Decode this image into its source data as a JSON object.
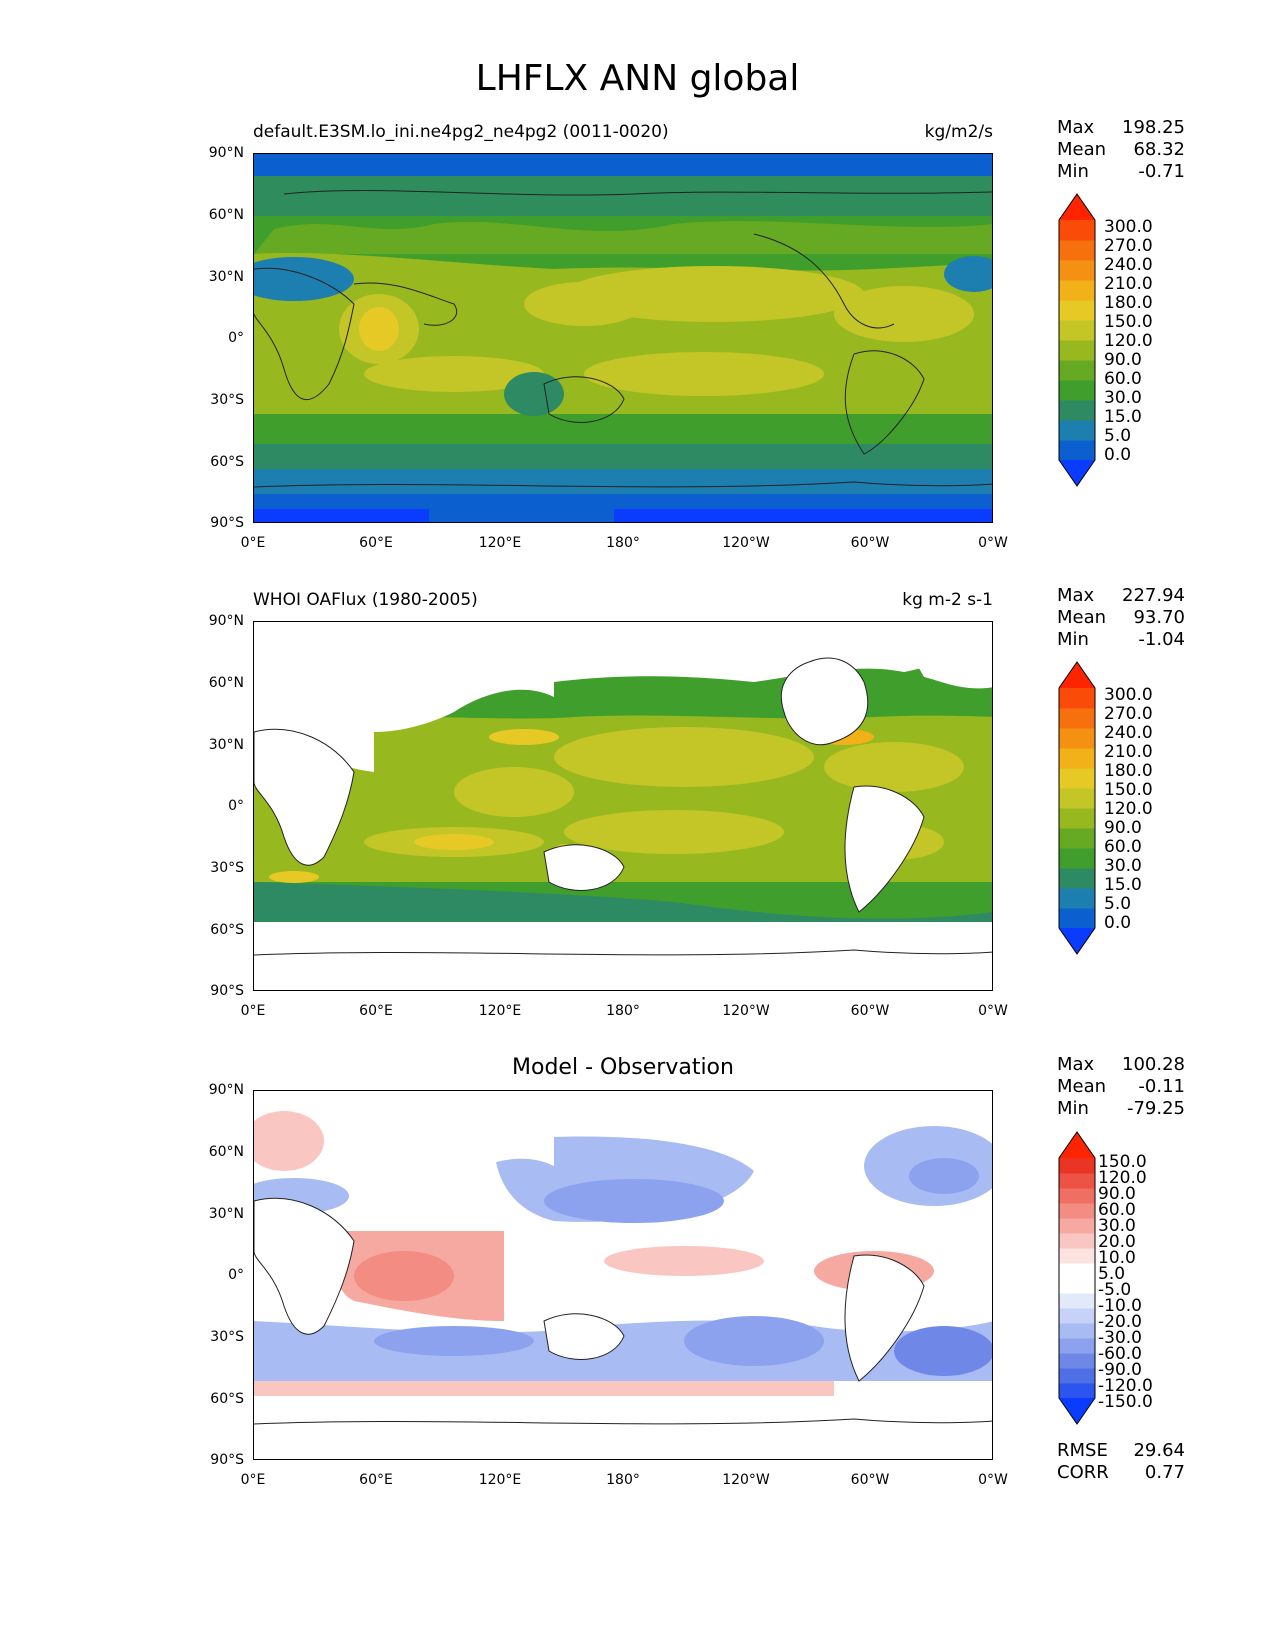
{
  "figure": {
    "title": "LHFLX ANN global"
  },
  "axes_ticks": {
    "lat": [
      "90°N",
      "60°N",
      "30°N",
      "0°",
      "30°S",
      "60°S",
      "90°S"
    ],
    "lon": [
      "0°E",
      "60°E",
      "120°E",
      "180°",
      "120°W",
      "60°W",
      "0°W"
    ]
  },
  "colors": {
    "sequential": [
      "#0a3cff",
      "#0b5fcf",
      "#1d7fb0",
      "#2e8a63",
      "#3f9e2c",
      "#66a923",
      "#98b820",
      "#c3c626",
      "#e6c925",
      "#f2b019",
      "#f49113",
      "#f7700e",
      "#fa4b09",
      "#ff2400"
    ],
    "diverging": [
      "#0a3cff",
      "#2c55ef",
      "#4e6fe6",
      "#6f88e8",
      "#8da2ee",
      "#a9bbf3",
      "#c6d2f7",
      "#e2e9fb",
      "#ffffff",
      "#ffffff",
      "#fde3e0",
      "#f9c6c1",
      "#f6a9a1",
      "#f38c82",
      "#f06f63",
      "#ed5244",
      "#ea3525",
      "#ff2400"
    ]
  },
  "panels": [
    {
      "subtitle_left": "default.E3SM.lo_ini.ne4pg2_ne4pg2 (0011-0020)",
      "subtitle_right": "kg/m2/s",
      "stats": {
        "max_label": "Max",
        "max": "198.25",
        "mean_label": "Mean",
        "mean": "68.32",
        "min_label": "Min",
        "min": "-0.71"
      },
      "levels": [
        "300.0",
        "270.0",
        "240.0",
        "210.0",
        "180.0",
        "150.0",
        "120.0",
        "90.0",
        "60.0",
        "30.0",
        "15.0",
        "5.0",
        "0.0"
      ]
    },
    {
      "subtitle_left": "WHOI OAFlux (1980-2005)",
      "subtitle_right": "kg m-2 s-1",
      "stats": {
        "max_label": "Max",
        "max": "227.94",
        "mean_label": "Mean",
        "mean": "93.70",
        "min_label": "Min",
        "min": "-1.04"
      },
      "levels": [
        "300.0",
        "270.0",
        "240.0",
        "210.0",
        "180.0",
        "150.0",
        "120.0",
        "90.0",
        "60.0",
        "30.0",
        "15.0",
        "5.0",
        "0.0"
      ]
    },
    {
      "subtitle_center": "Model - Observation",
      "stats": {
        "max_label": "Max",
        "max": "100.28",
        "mean_label": "Mean",
        "mean": "-0.11",
        "min_label": "Min",
        "min": "-79.25"
      },
      "levels": [
        "150.0",
        "120.0",
        "90.0",
        "60.0",
        "30.0",
        "20.0",
        "10.0",
        "5.0",
        "-5.0",
        "-10.0",
        "-20.0",
        "-30.0",
        "-60.0",
        "-90.0",
        "-120.0",
        "-150.0"
      ],
      "extra": {
        "rmse_label": "RMSE",
        "rmse": "29.64",
        "corr_label": "CORR",
        "corr": "0.77"
      }
    }
  ],
  "chart_data": {
    "type": "heatmap",
    "title": "LHFLX ANN global",
    "panels": [
      "Model",
      "Observation",
      "Model - Observation"
    ],
    "lat_range": [
      -90,
      90
    ],
    "lon_range": [
      0,
      360
    ],
    "model_stats": {
      "max": 198.25,
      "mean": 68.32,
      "min": -0.71
    },
    "obs_stats": {
      "max": 227.94,
      "mean": 93.7,
      "min": -1.04
    },
    "diff_stats": {
      "max": 100.28,
      "mean": -0.11,
      "min": -79.25,
      "rmse": 29.64,
      "corr": 0.77
    },
    "contour_levels_main": [
      0,
      5,
      15,
      30,
      60,
      90,
      120,
      150,
      180,
      210,
      240,
      270,
      300
    ],
    "contour_levels_diff": [
      -150,
      -120,
      -90,
      -60,
      -30,
      -20,
      -10,
      -5,
      5,
      10,
      20,
      30,
      60,
      90,
      120,
      150
    ]
  }
}
